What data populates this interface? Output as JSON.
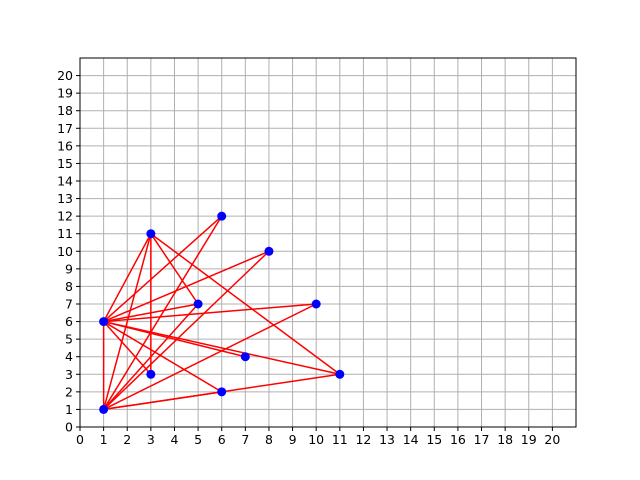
{
  "chart_data": {
    "type": "scatter",
    "title": "",
    "xlabel": "",
    "ylabel": "",
    "xlim": [
      0,
      21
    ],
    "ylim": [
      0,
      21
    ],
    "xticks": [
      0,
      1,
      2,
      3,
      4,
      5,
      6,
      7,
      8,
      9,
      10,
      11,
      12,
      13,
      14,
      15,
      16,
      17,
      18,
      19,
      20
    ],
    "yticks": [
      0,
      1,
      2,
      3,
      4,
      5,
      6,
      7,
      8,
      9,
      10,
      11,
      12,
      13,
      14,
      15,
      16,
      17,
      18,
      19,
      20
    ],
    "grid": true,
    "points": [
      {
        "x": 1,
        "y": 1
      },
      {
        "x": 1,
        "y": 6
      },
      {
        "x": 3,
        "y": 3
      },
      {
        "x": 3,
        "y": 11
      },
      {
        "x": 5,
        "y": 7
      },
      {
        "x": 6,
        "y": 2
      },
      {
        "x": 6,
        "y": 12
      },
      {
        "x": 7,
        "y": 4
      },
      {
        "x": 8,
        "y": 10
      },
      {
        "x": 10,
        "y": 7
      },
      {
        "x": 11,
        "y": 3
      }
    ],
    "edges": [
      [
        [
          1,
          1
        ],
        [
          1,
          6
        ]
      ],
      [
        [
          1,
          1
        ],
        [
          3,
          11
        ]
      ],
      [
        [
          1,
          1
        ],
        [
          6,
          12
        ]
      ],
      [
        [
          1,
          1
        ],
        [
          8,
          10
        ]
      ],
      [
        [
          1,
          1
        ],
        [
          10,
          7
        ]
      ],
      [
        [
          1,
          1
        ],
        [
          11,
          3
        ]
      ],
      [
        [
          1,
          1
        ],
        [
          6,
          2
        ]
      ],
      [
        [
          1,
          1
        ],
        [
          5,
          7
        ]
      ],
      [
        [
          1,
          6
        ],
        [
          3,
          11
        ]
      ],
      [
        [
          1,
          6
        ],
        [
          6,
          12
        ]
      ],
      [
        [
          1,
          6
        ],
        [
          8,
          10
        ]
      ],
      [
        [
          1,
          6
        ],
        [
          10,
          7
        ]
      ],
      [
        [
          1,
          6
        ],
        [
          5,
          7
        ]
      ],
      [
        [
          1,
          6
        ],
        [
          7,
          4
        ]
      ],
      [
        [
          1,
          6
        ],
        [
          11,
          3
        ]
      ],
      [
        [
          1,
          6
        ],
        [
          6,
          2
        ]
      ],
      [
        [
          1,
          6
        ],
        [
          3,
          3
        ]
      ],
      [
        [
          3,
          11
        ],
        [
          3,
          3
        ]
      ],
      [
        [
          3,
          11
        ],
        [
          5,
          7
        ]
      ],
      [
        [
          3,
          11
        ],
        [
          11,
          3
        ]
      ]
    ],
    "point_color": "#0000ff",
    "line_color": "#ff0000"
  }
}
